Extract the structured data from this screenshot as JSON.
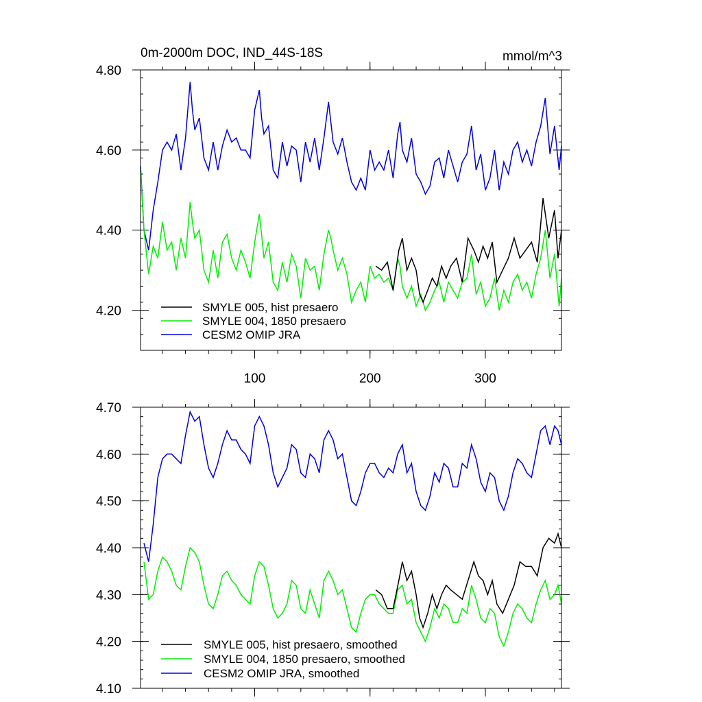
{
  "chart_data": [
    {
      "type": "line",
      "title": "0m-2000m DOC, IND_44S-18S",
      "units": "mmol/m^3",
      "xlabel": "",
      "ylabel": "",
      "xlim": [
        1,
        366
      ],
      "ylim": [
        4.1,
        4.8
      ],
      "xticks": [
        100,
        200,
        300
      ],
      "xtick_labels": [
        "100",
        "200",
        "300"
      ],
      "yticks": [
        4.2,
        4.4,
        4.6,
        4.8
      ],
      "ytick_labels": [
        "4.20",
        "4.40",
        "4.60",
        "4.80"
      ],
      "grid": false,
      "legend_position": "bottom-left",
      "series": [
        {
          "name": "SMYLE 005, hist presaero",
          "color": "#000000",
          "x": [
            205,
            210,
            215,
            220,
            225,
            228,
            232,
            236,
            240,
            243,
            246,
            250,
            254,
            258,
            262,
            266,
            270,
            275,
            280,
            285,
            290,
            294,
            298,
            302,
            306,
            310,
            315,
            320,
            325,
            330,
            335,
            340,
            345,
            350,
            355,
            360,
            363,
            366
          ],
          "values": [
            4.31,
            4.3,
            4.32,
            4.25,
            4.35,
            4.38,
            4.3,
            4.33,
            4.3,
            4.24,
            4.22,
            4.25,
            4.28,
            4.26,
            4.31,
            4.28,
            4.31,
            4.33,
            4.27,
            4.38,
            4.35,
            4.32,
            4.36,
            4.33,
            4.37,
            4.27,
            4.3,
            4.33,
            4.38,
            4.33,
            4.35,
            4.37,
            4.32,
            4.48,
            4.38,
            4.45,
            4.33,
            4.4
          ]
        },
        {
          "name": "SMYLE 004, 1850 presaero",
          "color": "#00ee00",
          "x": [
            1,
            4,
            8,
            12,
            16,
            20,
            24,
            28,
            32,
            36,
            40,
            44,
            46,
            48,
            52,
            56,
            60,
            64,
            68,
            72,
            76,
            80,
            84,
            88,
            92,
            96,
            100,
            104,
            106,
            108,
            112,
            116,
            120,
            124,
            128,
            132,
            136,
            140,
            144,
            148,
            152,
            156,
            160,
            164,
            166,
            168,
            172,
            176,
            180,
            184,
            188,
            192,
            196,
            200,
            204,
            208,
            212,
            216,
            220,
            224,
            226,
            228,
            232,
            236,
            240,
            244,
            248,
            252,
            256,
            260,
            264,
            268,
            272,
            276,
            280,
            284,
            288,
            292,
            296,
            300,
            304,
            308,
            312,
            316,
            320,
            324,
            328,
            332,
            336,
            340,
            344,
            348,
            352,
            356,
            360,
            364,
            366
          ],
          "values": [
            4.55,
            4.4,
            4.29,
            4.36,
            4.33,
            4.42,
            4.35,
            4.37,
            4.3,
            4.38,
            4.33,
            4.47,
            4.42,
            4.38,
            4.4,
            4.3,
            4.27,
            4.35,
            4.28,
            4.37,
            4.39,
            4.33,
            4.3,
            4.35,
            4.32,
            4.28,
            4.37,
            4.44,
            4.39,
            4.33,
            4.37,
            4.27,
            4.25,
            4.32,
            4.27,
            4.34,
            4.31,
            4.23,
            4.33,
            4.3,
            4.31,
            4.25,
            4.34,
            4.4,
            4.38,
            4.35,
            4.3,
            4.33,
            4.29,
            4.22,
            4.25,
            4.27,
            4.22,
            4.31,
            4.28,
            4.29,
            4.27,
            4.28,
            4.25,
            4.33,
            4.31,
            4.26,
            4.23,
            4.26,
            4.21,
            4.24,
            4.2,
            4.22,
            4.25,
            4.27,
            4.22,
            4.27,
            4.25,
            4.23,
            4.27,
            4.28,
            4.34,
            4.24,
            4.27,
            4.21,
            4.23,
            4.28,
            4.2,
            4.25,
            4.22,
            4.27,
            4.29,
            4.25,
            4.27,
            4.23,
            4.29,
            4.33,
            4.4,
            4.28,
            4.34,
            4.21,
            4.28
          ]
        },
        {
          "name": "CESM2 OMIP JRA",
          "color": "#0000dd",
          "x": [
            1,
            4,
            8,
            12,
            16,
            20,
            24,
            28,
            32,
            36,
            40,
            44,
            46,
            48,
            52,
            56,
            60,
            64,
            68,
            72,
            76,
            80,
            84,
            88,
            92,
            96,
            100,
            104,
            106,
            108,
            112,
            116,
            120,
            124,
            128,
            132,
            136,
            140,
            144,
            148,
            152,
            156,
            160,
            164,
            166,
            168,
            172,
            176,
            180,
            184,
            188,
            192,
            196,
            200,
            204,
            208,
            212,
            216,
            220,
            224,
            226,
            228,
            232,
            236,
            240,
            244,
            248,
            252,
            256,
            260,
            264,
            268,
            272,
            276,
            280,
            284,
            288,
            292,
            296,
            300,
            304,
            308,
            312,
            316,
            320,
            324,
            328,
            332,
            336,
            340,
            344,
            348,
            352,
            356,
            360,
            364,
            366
          ],
          "values": [
            4.56,
            4.4,
            4.35,
            4.45,
            4.52,
            4.6,
            4.62,
            4.6,
            4.64,
            4.55,
            4.63,
            4.77,
            4.7,
            4.65,
            4.68,
            4.58,
            4.55,
            4.62,
            4.55,
            4.61,
            4.65,
            4.62,
            4.63,
            4.6,
            4.6,
            4.58,
            4.7,
            4.75,
            4.68,
            4.64,
            4.66,
            4.55,
            4.53,
            4.62,
            4.56,
            4.61,
            4.6,
            4.52,
            4.62,
            4.57,
            4.63,
            4.55,
            4.63,
            4.72,
            4.67,
            4.62,
            4.59,
            4.63,
            4.57,
            4.52,
            4.5,
            4.53,
            4.5,
            4.6,
            4.55,
            4.57,
            4.55,
            4.6,
            4.53,
            4.64,
            4.67,
            4.6,
            4.57,
            4.63,
            4.54,
            4.52,
            4.49,
            4.51,
            4.57,
            4.58,
            4.53,
            4.6,
            4.56,
            4.52,
            4.57,
            4.59,
            4.66,
            4.55,
            4.59,
            4.5,
            4.53,
            4.6,
            4.5,
            4.57,
            4.54,
            4.6,
            4.62,
            4.57,
            4.6,
            4.56,
            4.62,
            4.66,
            4.73,
            4.59,
            4.66,
            4.55,
            4.61
          ]
        }
      ]
    },
    {
      "type": "line",
      "title": "",
      "xlabel": "",
      "ylabel": "",
      "xlim": [
        1,
        366
      ],
      "ylim": [
        4.1,
        4.7
      ],
      "xticks": [
        100,
        200,
        300
      ],
      "xtick_labels": [],
      "yticks": [
        4.1,
        4.2,
        4.3,
        4.4,
        4.5,
        4.6,
        4.7
      ],
      "ytick_labels": [
        "4.10",
        "4.20",
        "4.30",
        "4.40",
        "4.50",
        "4.60",
        "4.70"
      ],
      "grid": false,
      "legend_position": "bottom-left",
      "series": [
        {
          "name": "SMYLE 005, hist presaero, smoothed",
          "color": "#000000",
          "x": [
            205,
            210,
            215,
            220,
            225,
            228,
            232,
            236,
            240,
            243,
            246,
            250,
            254,
            258,
            262,
            266,
            270,
            275,
            280,
            285,
            290,
            294,
            298,
            302,
            306,
            310,
            315,
            320,
            325,
            330,
            335,
            340,
            345,
            350,
            355,
            360,
            363,
            366
          ],
          "values": [
            4.31,
            4.3,
            4.27,
            4.27,
            4.33,
            4.37,
            4.33,
            4.35,
            4.3,
            4.25,
            4.23,
            4.26,
            4.3,
            4.27,
            4.3,
            4.32,
            4.31,
            4.3,
            4.29,
            4.33,
            4.37,
            4.34,
            4.33,
            4.3,
            4.33,
            4.28,
            4.26,
            4.29,
            4.32,
            4.37,
            4.36,
            4.36,
            4.34,
            4.4,
            4.42,
            4.41,
            4.43,
            4.4
          ]
        },
        {
          "name": "SMYLE 004, 1850 presaero, smoothed",
          "color": "#00ee00",
          "x": [
            4,
            8,
            12,
            16,
            20,
            24,
            28,
            32,
            36,
            40,
            44,
            48,
            52,
            56,
            60,
            64,
            68,
            72,
            76,
            80,
            84,
            88,
            92,
            96,
            100,
            104,
            108,
            112,
            116,
            120,
            124,
            128,
            132,
            136,
            140,
            144,
            148,
            152,
            156,
            160,
            164,
            168,
            172,
            176,
            180,
            184,
            188,
            192,
            196,
            200,
            204,
            208,
            212,
            216,
            220,
            224,
            228,
            232,
            236,
            240,
            244,
            248,
            252,
            256,
            260,
            264,
            268,
            272,
            276,
            280,
            284,
            288,
            292,
            296,
            300,
            304,
            308,
            312,
            316,
            320,
            324,
            328,
            332,
            336,
            340,
            344,
            348,
            352,
            356,
            360,
            363,
            366
          ],
          "values": [
            4.37,
            4.29,
            4.3,
            4.35,
            4.38,
            4.37,
            4.35,
            4.32,
            4.31,
            4.36,
            4.4,
            4.39,
            4.37,
            4.32,
            4.28,
            4.27,
            4.3,
            4.34,
            4.35,
            4.33,
            4.32,
            4.3,
            4.29,
            4.28,
            4.34,
            4.37,
            4.36,
            4.32,
            4.27,
            4.25,
            4.26,
            4.28,
            4.33,
            4.32,
            4.27,
            4.26,
            4.31,
            4.28,
            4.25,
            4.33,
            4.35,
            4.33,
            4.3,
            4.31,
            4.27,
            4.23,
            4.22,
            4.26,
            4.29,
            4.3,
            4.3,
            4.28,
            4.27,
            4.26,
            4.26,
            4.31,
            4.32,
            4.28,
            4.29,
            4.24,
            4.22,
            4.2,
            4.23,
            4.27,
            4.25,
            4.28,
            4.27,
            4.24,
            4.24,
            4.27,
            4.26,
            4.32,
            4.29,
            4.25,
            4.24,
            4.27,
            4.26,
            4.21,
            4.19,
            4.22,
            4.26,
            4.28,
            4.27,
            4.25,
            4.24,
            4.28,
            4.31,
            4.33,
            4.29,
            4.3,
            4.32,
            4.28
          ]
        },
        {
          "name": "CESM2 OMIP JRA, smoothed",
          "color": "#0000dd",
          "x": [
            4,
            8,
            12,
            16,
            20,
            24,
            28,
            32,
            36,
            40,
            44,
            48,
            52,
            56,
            60,
            64,
            68,
            72,
            76,
            80,
            84,
            88,
            92,
            96,
            100,
            104,
            108,
            112,
            116,
            120,
            124,
            128,
            132,
            136,
            140,
            144,
            148,
            152,
            156,
            160,
            164,
            168,
            172,
            176,
            180,
            184,
            188,
            192,
            196,
            200,
            204,
            208,
            212,
            216,
            220,
            224,
            228,
            232,
            236,
            240,
            244,
            248,
            252,
            256,
            260,
            264,
            268,
            272,
            276,
            280,
            284,
            288,
            292,
            296,
            300,
            304,
            308,
            312,
            316,
            320,
            324,
            328,
            332,
            336,
            340,
            344,
            348,
            352,
            356,
            360,
            363,
            366
          ],
          "values": [
            4.41,
            4.37,
            4.45,
            4.55,
            4.59,
            4.6,
            4.6,
            4.59,
            4.58,
            4.64,
            4.69,
            4.67,
            4.68,
            4.62,
            4.57,
            4.55,
            4.58,
            4.62,
            4.65,
            4.63,
            4.63,
            4.61,
            4.6,
            4.58,
            4.66,
            4.68,
            4.66,
            4.62,
            4.56,
            4.53,
            4.55,
            4.57,
            4.62,
            4.61,
            4.56,
            4.55,
            4.6,
            4.59,
            4.56,
            4.63,
            4.65,
            4.63,
            4.59,
            4.6,
            4.55,
            4.5,
            4.49,
            4.52,
            4.56,
            4.58,
            4.58,
            4.56,
            4.55,
            4.57,
            4.56,
            4.6,
            4.62,
            4.56,
            4.58,
            4.52,
            4.49,
            4.48,
            4.51,
            4.56,
            4.54,
            4.58,
            4.57,
            4.53,
            4.53,
            4.58,
            4.57,
            4.62,
            4.59,
            4.54,
            4.52,
            4.56,
            4.55,
            4.5,
            4.48,
            4.51,
            4.56,
            4.59,
            4.58,
            4.56,
            4.55,
            4.6,
            4.65,
            4.66,
            4.62,
            4.66,
            4.65,
            4.62
          ]
        }
      ]
    }
  ]
}
